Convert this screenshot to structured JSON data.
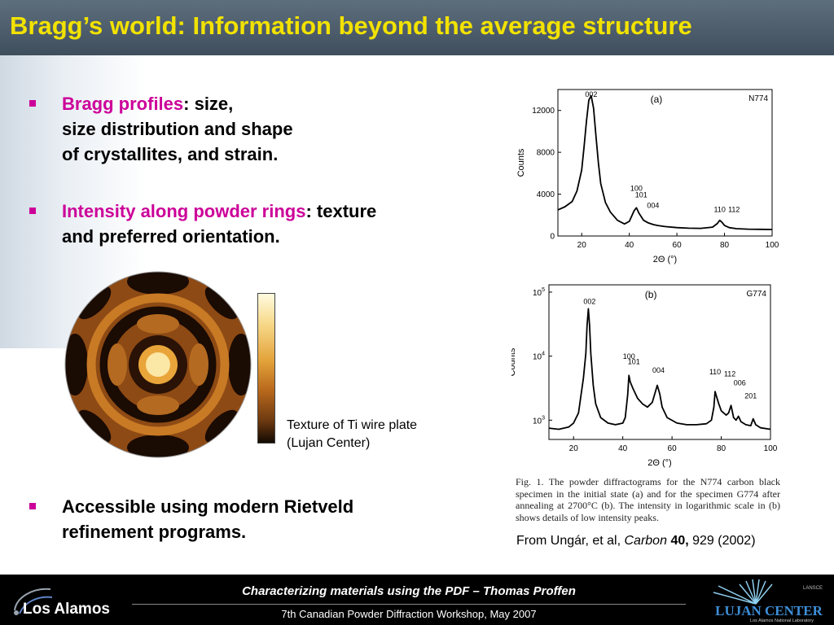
{
  "title": "Bragg’s world: Information beyond the average structure",
  "bullets": [
    {
      "highlight": "Bragg profiles",
      "text": ": size,",
      "line2": "size distribution and shape",
      "line3": "of crystallites, and strain."
    },
    {
      "highlight": "Intensity along powder rings",
      "text": ": texture",
      "line2": "and preferred orientation."
    },
    {
      "text": "Accessible using modern Rietveld",
      "line2": "refinement programs."
    }
  ],
  "texture_caption": {
    "line1": "Texture of Ti wire plate",
    "line2": "(Lujan Center)"
  },
  "figure_caption": "Fig. 1. The powder diffractograms for the N774 carbon black specimen in the initial state (a) and for the specimen G774 after annealing at 2700°C (b). The intensity in logarithmic scale in (b) shows details of low intensity peaks.",
  "citation": {
    "prefix": "From Ungár, et al, ",
    "journal": "Carbon",
    "volume": "40,",
    "rest": " 929 (2002)"
  },
  "footer": {
    "main": "Characterizing materials using the PDF – Thomas Proffen",
    "sub": "7th Canadian Powder Diffraction Workshop, May 2007"
  },
  "logos": {
    "los_alamos": "Los Alamos",
    "lujan_top": "LANSCE",
    "lujan": "LUJAN CENTER",
    "lujan_sub": "Los Alamos National Laboratory"
  },
  "colors": {
    "title": "#f2e200",
    "highlight": "#cc0099",
    "title_bar": "#4d5d6c",
    "footer": "#000000"
  },
  "chart_data": [
    {
      "type": "line",
      "panel_label": "(a)",
      "sample": "N774",
      "ylabel": "Counts",
      "xlabel": "2Θ (°)",
      "xlim": [
        10,
        100
      ],
      "ylim": [
        0,
        14000
      ],
      "xticks": [
        20,
        40,
        60,
        80,
        100
      ],
      "yticks": [
        0,
        4000,
        8000,
        12000
      ],
      "peak_labels": [
        {
          "label": "002",
          "x": 24,
          "y": 13300
        },
        {
          "label": "100",
          "x": 43,
          "y": 4300
        },
        {
          "label": "101",
          "x": 45,
          "y": 3700
        },
        {
          "label": "004",
          "x": 50,
          "y": 2700
        },
        {
          "label": "110",
          "x": 78,
          "y": 2300
        },
        {
          "label": "112",
          "x": 84,
          "y": 2300
        }
      ],
      "x": [
        10,
        13,
        16,
        18,
        20,
        21,
        22,
        23,
        24,
        25,
        26,
        27,
        28,
        30,
        32,
        35,
        38,
        40,
        42,
        43,
        44,
        46,
        48,
        50,
        52,
        55,
        60,
        65,
        70,
        75,
        77,
        78,
        79,
        80,
        82,
        85,
        90,
        95,
        100
      ],
      "y": [
        2500,
        2800,
        3300,
        4300,
        6300,
        8500,
        11000,
        13000,
        13400,
        12200,
        9500,
        7000,
        5000,
        3200,
        2300,
        1500,
        1150,
        1400,
        2400,
        2700,
        2200,
        1500,
        1250,
        1100,
        1000,
        900,
        800,
        750,
        730,
        850,
        1200,
        1500,
        1300,
        1000,
        800,
        700,
        650,
        640,
        620
      ]
    },
    {
      "type": "line",
      "panel_label": "(b)",
      "sample": "G774",
      "ylabel": "Counts",
      "xlabel": "2Θ (°)",
      "yscale": "log",
      "xlim": [
        10,
        100
      ],
      "ylim": [
        500,
        130000
      ],
      "xticks": [
        20,
        40,
        60,
        80,
        100
      ],
      "yticks": [
        "10^3",
        "10^4",
        "10^5"
      ],
      "peak_labels": [
        {
          "label": "002",
          "x": 26.5,
          "y": 65000
        },
        {
          "label": "100",
          "x": 42.5,
          "y": 9000
        },
        {
          "label": "101",
          "x": 44.5,
          "y": 7500
        },
        {
          "label": "004",
          "x": 54.5,
          "y": 5500
        },
        {
          "label": "110",
          "x": 77.5,
          "y": 5200
        },
        {
          "label": "112",
          "x": 83.5,
          "y": 4800
        },
        {
          "label": "006",
          "x": 87.5,
          "y": 3500
        },
        {
          "label": "201",
          "x": 92,
          "y": 2200
        }
      ],
      "x": [
        10,
        14,
        18,
        20,
        22,
        24,
        25,
        25.5,
        26,
        26.5,
        27,
        28,
        29,
        31,
        34,
        37,
        40,
        41,
        42,
        42.5,
        43,
        44,
        46,
        48,
        50,
        52,
        53,
        54,
        55,
        56,
        58,
        62,
        66,
        70,
        74,
        76,
        77,
        77.5,
        78,
        79,
        80,
        82,
        83,
        84,
        85,
        86,
        87,
        88,
        90,
        92,
        93,
        94,
        96,
        100
      ],
      "y": [
        750,
        720,
        780,
        900,
        1300,
        4500,
        11000,
        30000,
        55000,
        30000,
        11000,
        3500,
        1800,
        1100,
        900,
        850,
        900,
        1100,
        2500,
        5000,
        4000,
        3200,
        2200,
        1800,
        1600,
        1900,
        2600,
        3500,
        2600,
        1600,
        1100,
        900,
        850,
        850,
        880,
        1000,
        1600,
        2800,
        2400,
        1800,
        1400,
        1200,
        1300,
        1700,
        1100,
        1000,
        1150,
        950,
        850,
        820,
        1050,
        850,
        760,
        720
      ]
    }
  ]
}
